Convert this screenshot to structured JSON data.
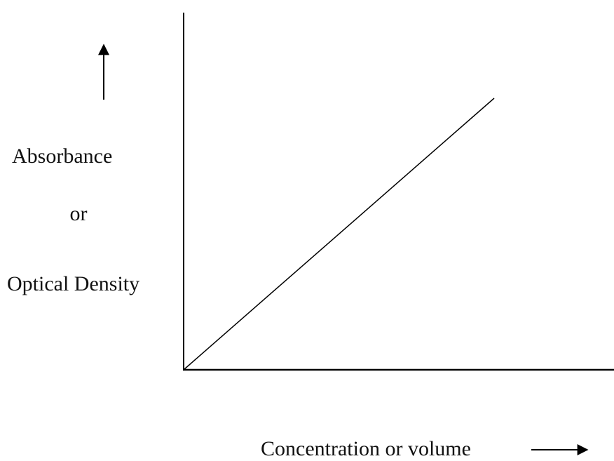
{
  "y_label": {
    "line1": "Absorbance",
    "line2": "or",
    "line3": "Optical Density"
  },
  "x_label": "Concentration or volume"
}
